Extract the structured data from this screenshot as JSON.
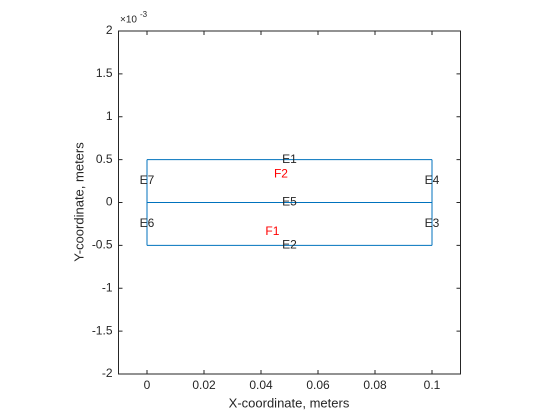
{
  "chart_data": {
    "type": "geometry",
    "xlabel": "X-coordinate, meters",
    "ylabel": "Y-coordinate, meters",
    "y_multiplier": {
      "base": "×10",
      "exponent": "-3"
    },
    "xlim": [
      -0.01,
      0.11
    ],
    "xticks": [
      0,
      0.02,
      0.04,
      0.06,
      0.08,
      0.1
    ],
    "ylim": [
      -2,
      2
    ],
    "yticks": [
      -2,
      -1.5,
      -1,
      -0.5,
      0,
      0.5,
      1,
      1.5,
      2
    ],
    "edge_color": "#0072bd",
    "face_color": "#ff0000",
    "series": [
      {
        "name": "E1",
        "x": [
          0,
          0.1
        ],
        "y": [
          0.5,
          0.5
        ]
      },
      {
        "name": "E2",
        "x": [
          0,
          0.1
        ],
        "y": [
          -0.5,
          -0.5
        ]
      },
      {
        "name": "E3",
        "x": [
          0.1,
          0.1
        ],
        "y": [
          -0.5,
          0
        ]
      },
      {
        "name": "E4",
        "x": [
          0.1,
          0.1
        ],
        "y": [
          0,
          0.5
        ]
      },
      {
        "name": "E5",
        "x": [
          0,
          0.1
        ],
        "y": [
          0,
          0
        ]
      },
      {
        "name": "E6",
        "x": [
          0,
          0
        ],
        "y": [
          -0.5,
          0
        ]
      },
      {
        "name": "E7",
        "x": [
          0,
          0
        ],
        "y": [
          0,
          0.5
        ]
      }
    ],
    "faces": [
      {
        "label": "F1",
        "x": 0.044,
        "y": -0.34
      },
      {
        "label": "F2",
        "x": 0.047,
        "y": 0.33
      }
    ]
  }
}
